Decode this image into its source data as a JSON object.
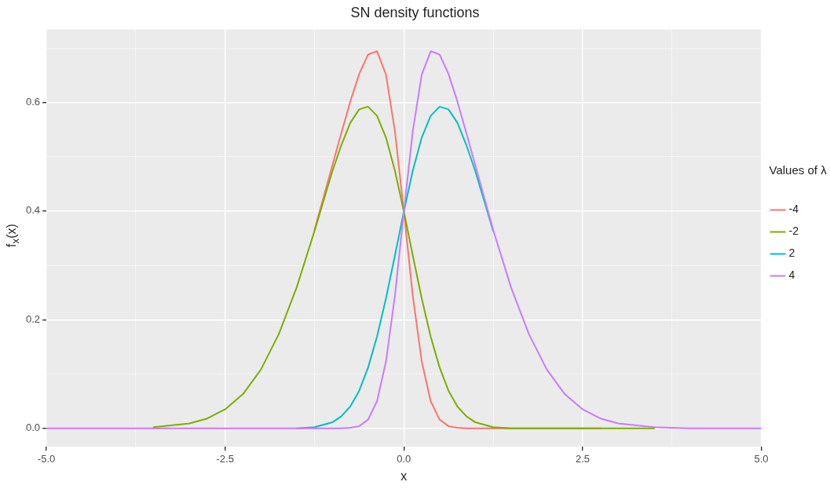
{
  "chart_data": {
    "type": "line",
    "title": "SN density functions",
    "xlabel": "x",
    "ylabel": "f$_{x}$(x)",
    "legend_title": "Values of λ",
    "legend": "right",
    "grid": true,
    "marker": "none",
    "line_style": "solid",
    "x": [
      -5,
      -4,
      -3.5,
      -3,
      -2.75,
      -2.5,
      -2.25,
      -2,
      -1.75,
      -1.5,
      -1.25,
      -1,
      -0.875,
      -0.75,
      -0.625,
      -0.5,
      -0.375,
      -0.25,
      -0.125,
      0,
      0.125,
      0.25,
      0.375,
      0.5,
      0.625,
      0.75,
      0.875,
      1,
      1.25,
      1.5,
      1.75,
      2,
      2.25,
      2.5,
      2.75,
      3,
      3.5,
      4,
      5
    ],
    "xlim": [
      -5,
      5
    ],
    "xticks": [
      {
        "value": -5,
        "label": "-5.0"
      },
      {
        "value": -3.75,
        "label": null
      },
      {
        "value": -2.5,
        "label": "-2.5"
      },
      {
        "value": -1.25,
        "label": null
      },
      {
        "value": 0,
        "label": "0.0"
      },
      {
        "value": 1.25,
        "label": null
      },
      {
        "value": 2.5,
        "label": "2.5"
      },
      {
        "value": 3.75,
        "label": null
      },
      {
        "value": 5,
        "label": "5.0"
      }
    ],
    "ylim": [
      -0.034,
      0.734
    ],
    "yticks": [
      {
        "value": 0,
        "label": "0.0"
      },
      {
        "value": 0.1,
        "label": null
      },
      {
        "value": 0.2,
        "label": "0.2"
      },
      {
        "value": 0.3,
        "label": null
      },
      {
        "value": 0.4,
        "label": "0.4"
      },
      {
        "value": 0.5,
        "label": null
      },
      {
        "value": 0.6,
        "label": "0.6"
      },
      {
        "value": 0.7,
        "label": null
      }
    ],
    "series": [
      {
        "name": "-4",
        "color": "#f8766d",
        "values": [
          null,
          null,
          null,
          null,
          null,
          null,
          null,
          null,
          null,
          null,
          0.365,
          0.484,
          0.543,
          0.601,
          0.652,
          0.688,
          0.694,
          0.651,
          0.547,
          0.399,
          0.244,
          0.123,
          0.05,
          0.016,
          0.004,
          0.001,
          0,
          0,
          0,
          0,
          0,
          0,
          0,
          0,
          0,
          null,
          null,
          null,
          null
        ]
      },
      {
        "name": "-2",
        "color": "#7cae00",
        "values": [
          null,
          null,
          0.002,
          0.009,
          0.018,
          0.035,
          0.063,
          0.108,
          0.173,
          0.259,
          0.363,
          0.473,
          0.521,
          0.562,
          0.587,
          0.592,
          0.575,
          0.535,
          0.474,
          0.399,
          0.318,
          0.239,
          0.169,
          0.112,
          0.069,
          0.04,
          0.022,
          0.011,
          0.002,
          0,
          0,
          0,
          0,
          0,
          0,
          0,
          0,
          null,
          null
        ]
      },
      {
        "name": "2",
        "color": "#00bfc4",
        "values": [
          null,
          null,
          null,
          null,
          null,
          null,
          null,
          null,
          null,
          0,
          0.002,
          0.011,
          0.022,
          0.04,
          0.069,
          0.112,
          0.169,
          0.239,
          0.318,
          0.399,
          0.474,
          0.535,
          0.575,
          0.592,
          0.587,
          0.562,
          0.521,
          0.473,
          0.363,
          null,
          null,
          null,
          null,
          null,
          null,
          null,
          null,
          null,
          null
        ]
      },
      {
        "name": "4",
        "color": "#c77cff",
        "values": [
          0,
          0,
          0,
          0,
          0,
          0,
          0,
          0,
          0,
          0,
          0,
          0,
          0,
          0.001,
          0.004,
          0.016,
          0.05,
          0.123,
          0.244,
          0.399,
          0.547,
          0.651,
          0.694,
          0.688,
          0.652,
          0.601,
          0.543,
          0.484,
          0.365,
          0.259,
          0.173,
          0.108,
          0.063,
          0.035,
          0.018,
          0.009,
          0.002,
          0,
          0
        ]
      }
    ]
  }
}
